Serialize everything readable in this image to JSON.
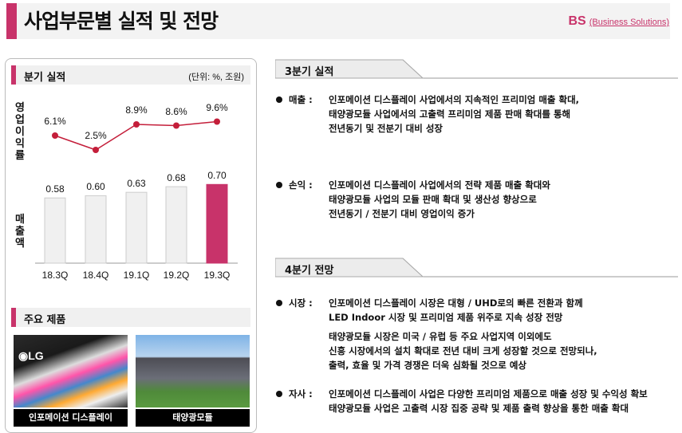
{
  "header": {
    "title": "사업부문별 실적 및 전망",
    "division_abbr": "BS",
    "division_full": "(Business Solutions)",
    "accent_color": "#c8336a"
  },
  "left": {
    "section_title": "분기 실적",
    "unit": "(단위: %, 조원)",
    "line_label": "영업이익률",
    "bar_label": "매출액",
    "products_title": "주요 제품",
    "products": [
      {
        "caption": "인포메이션 디스플레이",
        "image": "LG LED large display photo"
      },
      {
        "caption": "태양광모듈",
        "image": "house with solar panels photo"
      }
    ]
  },
  "chart_data": {
    "type": "bar+line",
    "categories": [
      "18.3Q",
      "18.4Q",
      "19.1Q",
      "19.2Q",
      "19.3Q"
    ],
    "series": [
      {
        "name": "영업이익률",
        "type": "line",
        "values": [
          6.1,
          2.5,
          8.9,
          8.6,
          9.6
        ],
        "labels": [
          "6.1%",
          "2.5%",
          "8.9%",
          "8.6%",
          "9.6%"
        ],
        "color": "#c41e3a"
      },
      {
        "name": "매출액",
        "type": "bar",
        "values": [
          0.58,
          0.6,
          0.63,
          0.68,
          0.7
        ],
        "labels": [
          "0.58",
          "0.60",
          "0.63",
          "0.68",
          "0.70"
        ],
        "colors": [
          "#f0f0f0",
          "#f0f0f0",
          "#f0f0f0",
          "#f0f0f0",
          "#c8336a"
        ]
      }
    ]
  },
  "right": {
    "q3": {
      "title": "3분기 실적",
      "items": [
        {
          "key": "매출 :",
          "lines": [
            "인포메이션 디스플레이 사업에서의 지속적인 프리미엄 매출 확대,",
            "태양광모듈 사업에서의 고출력 프리미엄 제품 판매 확대를 통해",
            "전년동기 및 전분기 대비 성장"
          ]
        },
        {
          "key": "손익 :",
          "lines": [
            "인포메이션 디스플레이 사업에서의 전략 제품 매출 확대와",
            "태양광모듈 사업의 모듈 판매 확대 및 생산성 향상으로",
            "전년동기 / 전분기 대비 영업이익 증가"
          ]
        }
      ]
    },
    "q4": {
      "title": "4분기 전망",
      "items": [
        {
          "key": "시장 :",
          "lines": [
            "인포메이션 디스플레이 시장은 대형 / UHD로의 빠른 전환과 함께",
            "LED Indoor 시장 및 프리미엄 제품 위주로 지속 성장 전망"
          ],
          "lines2": [
            "태양광모듈 시장은 미국 / 유럽 등 주요 사업지역 이외에도",
            "신흥 시장에서의 설치 확대로 전년 대비 크게 성장할 것으로 전망되나,",
            "출력, 효율 및 가격 경쟁은 더욱 심화될 것으로 예상"
          ]
        },
        {
          "key": "자사 :",
          "lines": [
            "인포메이션 디스플레이 사업은 다양한 프리미엄 제품으로 매출 성장 및 수익성 확보",
            "태양광모듈 사업은 고출력 시장 집중 공략 및 제품 출력 향상을 통한 매출 확대"
          ]
        }
      ]
    }
  }
}
